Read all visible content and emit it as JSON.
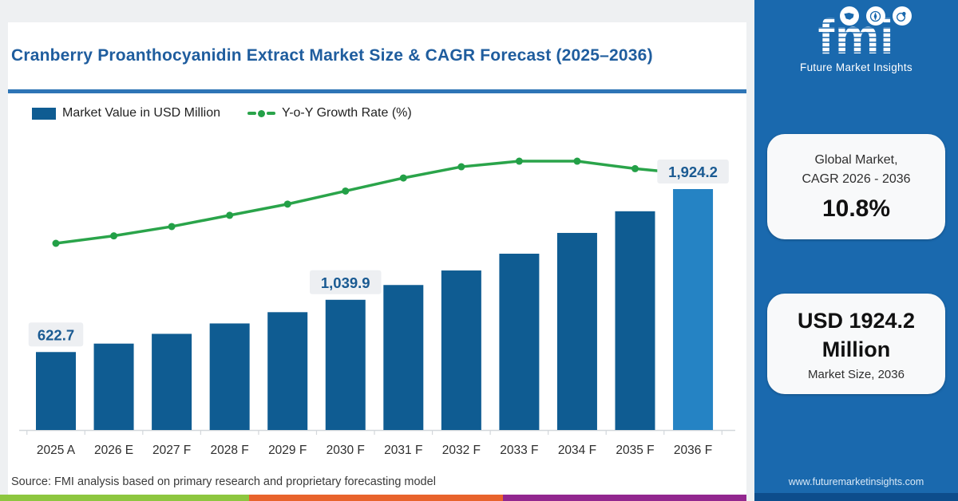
{
  "header": {
    "title": "Cranberry Proanthocyanidin Extract Market Size & CAGR Forecast (2025–2036)"
  },
  "legend": {
    "items": [
      {
        "label": "Market Value in USD Million",
        "type": "bar",
        "color": "#0f5c92"
      },
      {
        "label": "Y-o-Y Growth Rate (%)",
        "type": "line",
        "color": "#2aa44a"
      }
    ]
  },
  "chart_data": {
    "type": "bar",
    "subtype": "bar+line combo",
    "categories": [
      "2025 A",
      "2026 E",
      "2027 F",
      "2028 F",
      "2029 F",
      "2030 F",
      "2031 F",
      "2032 F",
      "2033 F",
      "2034 F",
      "2035 F",
      "2036 F"
    ],
    "series": [
      {
        "name": "Market Value in USD Million",
        "type": "bar",
        "unit": "USD Million",
        "values": [
          622.7,
          690,
          768,
          851,
          941,
          1039.9,
          1158,
          1274,
          1408,
          1574,
          1747,
          1924.2
        ],
        "labeled_values_shown": [
          622.7,
          1039.9,
          1924.2
        ],
        "estimated_indices": [
          1,
          2,
          3,
          4,
          6,
          7,
          8,
          9,
          10
        ],
        "color": "#0f5c92",
        "final_bar_color": "#2583c4"
      },
      {
        "name": "Y-o-Y Growth Rate (%)",
        "type": "line",
        "unit": "%",
        "values": [
          8.5,
          8.9,
          9.4,
          10.0,
          10.6,
          11.3,
          12.0,
          12.6,
          12.9,
          12.9,
          12.5,
          12.2
        ],
        "values_estimated_from_curve": true,
        "color": "#2aa44a",
        "dot_color": "#23a047"
      }
    ],
    "point_labels": [
      {
        "index": 0,
        "text": "622.7"
      },
      {
        "index": 5,
        "text": "1,039.9"
      },
      {
        "index": 11,
        "text": "1,924.2"
      }
    ],
    "title": "Cranberry Proanthocyanidin Extract Market Size & CAGR Forecast (2025–2036)",
    "xlabel": "",
    "ylabel": "",
    "ylim": [
      0,
      2100
    ],
    "grid": false,
    "legend_position": "top-left",
    "label_box_bg": "#edeff2",
    "label_text_color": "#1a5a92",
    "axis_line_color": "#d3d7db",
    "tick_label_color": "#2e2e2e"
  },
  "stats": {
    "cagr_box": {
      "line1": "Global Market,",
      "line2": "CAGR 2026 - 2036",
      "value": "10.8%"
    },
    "size_box": {
      "line1": "USD 1924.2",
      "line2": "Million",
      "caption": "Market Size, 2036"
    }
  },
  "source": {
    "text": "Source: FMI analysis based on primary research and proprietary forecasting model"
  },
  "brand": {
    "logo_text": "fmi",
    "logo_tagline": "Future Market Insights",
    "website": "www.futuremarketinsights.com",
    "icon_names": [
      "us-map-icon",
      "compass-icon",
      "globe-location-icon"
    ],
    "panel_color": "#1a69ae",
    "panel_footer_color": "#0d4d8c"
  },
  "footer_stripes": {
    "green": "#8dc63f",
    "orange": "#e8632c",
    "purple": "#92278f"
  }
}
